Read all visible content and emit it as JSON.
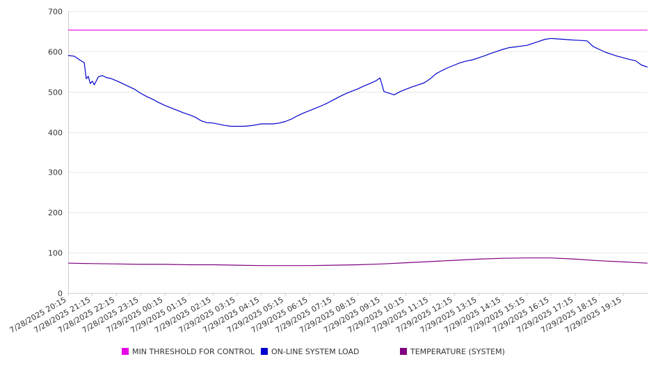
{
  "chart_data": {
    "type": "line",
    "title": "",
    "xlabel": "",
    "ylabel": "",
    "ylim": [
      0,
      700
    ],
    "y_ticks": [
      0,
      100,
      200,
      300,
      400,
      500,
      600,
      700
    ],
    "x_range": [
      "7/28/2025 20:15",
      "7/29/2025 20:15"
    ],
    "x_tick_labels": [
      "7/28/2025 20:15",
      "7/28/2025 21:15",
      "7/28/2025 22:15",
      "7/28/2025 23:15",
      "7/29/2025 00:15",
      "7/29/2025 01:15",
      "7/29/2025 02:15",
      "7/29/2025 03:15",
      "7/29/2025 04:15",
      "7/29/2025 05:15",
      "7/29/2025 06:15",
      "7/29/2025 07:15",
      "7/29/2025 08:15",
      "7/29/2025 09:15",
      "7/29/2025 10:15",
      "7/29/2025 11:15",
      "7/29/2025 12:15",
      "7/29/2025 13:15",
      "7/29/2025 14:15",
      "7/29/2025 15:15",
      "7/29/2025 16:15",
      "7/29/2025 17:15",
      "7/29/2025 18:15",
      "7/29/2025 19:15"
    ],
    "grid": "horizontal",
    "legend_position": "bottom",
    "series": [
      {
        "name": "MIN THRESHOLD FOR CONTROL",
        "color": "#e600e6",
        "x": [
          "7/28/2025 20:15",
          "7/29/2025 20:15"
        ],
        "y": [
          653,
          653
        ]
      },
      {
        "name": "ON-LINE SYSTEM LOAD",
        "color": "#0000cc",
        "x": [
          "7/28/2025 20:15",
          "7/28/2025 20:30",
          "7/28/2025 20:45",
          "7/28/2025 20:55",
          "7/28/2025 21:00",
          "7/28/2025 21:05",
          "7/28/2025 21:10",
          "7/28/2025 21:15",
          "7/28/2025 21:20",
          "7/28/2025 21:30",
          "7/28/2025 21:40",
          "7/28/2025 21:50",
          "7/28/2025 22:00",
          "7/28/2025 22:15",
          "7/28/2025 22:30",
          "7/28/2025 22:45",
          "7/28/2025 23:00",
          "7/28/2025 23:15",
          "7/28/2025 23:30",
          "7/28/2025 23:45",
          "7/29/2025 00:00",
          "7/29/2025 00:15",
          "7/29/2025 00:30",
          "7/29/2025 00:45",
          "7/29/2025 01:00",
          "7/29/2025 01:15",
          "7/29/2025 01:30",
          "7/29/2025 01:45",
          "7/29/2025 02:00",
          "7/29/2025 02:15",
          "7/29/2025 02:30",
          "7/29/2025 02:45",
          "7/29/2025 03:00",
          "7/29/2025 03:15",
          "7/29/2025 03:30",
          "7/29/2025 03:45",
          "7/29/2025 04:00",
          "7/29/2025 04:15",
          "7/29/2025 04:30",
          "7/29/2025 04:45",
          "7/29/2025 05:00",
          "7/29/2025 05:15",
          "7/29/2025 05:30",
          "7/29/2025 05:45",
          "7/29/2025 06:00",
          "7/29/2025 06:15",
          "7/29/2025 06:30",
          "7/29/2025 06:45",
          "7/29/2025 07:00",
          "7/29/2025 07:15",
          "7/29/2025 07:30",
          "7/29/2025 07:45",
          "7/29/2025 08:00",
          "7/29/2025 08:15",
          "7/29/2025 08:30",
          "7/29/2025 08:45",
          "7/29/2025 09:00",
          "7/29/2025 09:10",
          "7/29/2025 09:20",
          "7/29/2025 09:30",
          "7/29/2025 09:45",
          "7/29/2025 10:00",
          "7/29/2025 10:15",
          "7/29/2025 10:30",
          "7/29/2025 10:45",
          "7/29/2025 11:00",
          "7/29/2025 11:15",
          "7/29/2025 11:30",
          "7/29/2025 11:45",
          "7/29/2025 12:00",
          "7/29/2025 12:15",
          "7/29/2025 12:30",
          "7/29/2025 12:45",
          "7/29/2025 13:00",
          "7/29/2025 13:15",
          "7/29/2025 13:30",
          "7/29/2025 13:45",
          "7/29/2025 14:00",
          "7/29/2025 14:15",
          "7/29/2025 14:30",
          "7/29/2025 14:45",
          "7/29/2025 15:00",
          "7/29/2025 15:15",
          "7/29/2025 15:30",
          "7/29/2025 15:45",
          "7/29/2025 16:00",
          "7/29/2025 16:15",
          "7/29/2025 16:30",
          "7/29/2025 16:45",
          "7/29/2025 17:00",
          "7/29/2025 17:15",
          "7/29/2025 17:30",
          "7/29/2025 17:45",
          "7/29/2025 18:00",
          "7/29/2025 18:15",
          "7/29/2025 18:30",
          "7/29/2025 18:45",
          "7/29/2025 19:00",
          "7/29/2025 19:15",
          "7/29/2025 19:30",
          "7/29/2025 19:45",
          "7/29/2025 20:00",
          "7/29/2025 20:15"
        ],
        "y": [
          590,
          588,
          578,
          572,
          532,
          538,
          520,
          526,
          517,
          537,
          540,
          535,
          533,
          527,
          520,
          513,
          506,
          496,
          488,
          481,
          473,
          466,
          460,
          454,
          448,
          443,
          437,
          428,
          423,
          422,
          419,
          416,
          414,
          414,
          414,
          415,
          417,
          420,
          420,
          420,
          422,
          426,
          432,
          440,
          447,
          453,
          459,
          465,
          472,
          480,
          488,
          495,
          501,
          507,
          514,
          520,
          527,
          534,
          500,
          497,
          492,
          500,
          506,
          512,
          517,
          522,
          532,
          545,
          553,
          560,
          566,
          572,
          576,
          579,
          584,
          589,
          595,
          600,
          605,
          609,
          611,
          613,
          615,
          620,
          625,
          630,
          632,
          631,
          630,
          629,
          628,
          627,
          626,
          612,
          605,
          598,
          593,
          588,
          584,
          580,
          577,
          566,
          561
        ]
      },
      {
        "name": "TEMPERATURE (SYSTEM)",
        "color": "#800080",
        "x": [
          "7/28/2025 20:15",
          "7/28/2025 21:15",
          "7/28/2025 22:15",
          "7/28/2025 23:15",
          "7/29/2025 00:15",
          "7/29/2025 01:15",
          "7/29/2025 02:15",
          "7/29/2025 03:15",
          "7/29/2025 04:15",
          "7/29/2025 05:15",
          "7/29/2025 06:15",
          "7/29/2025 07:15",
          "7/29/2025 08:15",
          "7/29/2025 09:15",
          "7/29/2025 10:15",
          "7/29/2025 11:15",
          "7/29/2025 12:15",
          "7/29/2025 13:15",
          "7/29/2025 14:15",
          "7/29/2025 15:15",
          "7/29/2025 16:15",
          "7/29/2025 17:15",
          "7/29/2025 18:15",
          "7/29/2025 19:15",
          "7/29/2025 20:15"
        ],
        "y": [
          74,
          73,
          72,
          71,
          71,
          70,
          70,
          69,
          68,
          68,
          68,
          69,
          70,
          72,
          75,
          78,
          81,
          84,
          86,
          87,
          87,
          84,
          80,
          77,
          74
        ]
      }
    ]
  }
}
